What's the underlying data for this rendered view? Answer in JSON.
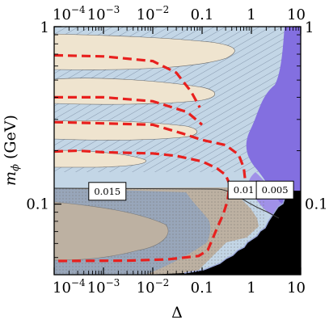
{
  "chart_data": {
    "type": "area",
    "title": "",
    "xlabel": "Δ",
    "ylabel": "m_ϕ (GeV)",
    "ylabel_main": "m",
    "ylabel_sub": "ϕ",
    "ylabel_unit": " (GeV)",
    "x_scale": "log",
    "y_scale": "log",
    "xlim": [
      0.0001,
      10
    ],
    "ylim": [
      0.04,
      1
    ],
    "x_ticks": [
      {
        "value": 0.0001,
        "base": "10",
        "exp": "−4"
      },
      {
        "value": 0.001,
        "base": "10",
        "exp": "−3"
      },
      {
        "value": 0.01,
        "base": "10",
        "exp": "−2"
      },
      {
        "value": 0.1,
        "label": "0.1"
      },
      {
        "value": 1,
        "label": "1"
      },
      {
        "value": 10,
        "label": "10"
      }
    ],
    "y_ticks": [
      {
        "value": 1,
        "label": "1"
      },
      {
        "value": 0.1,
        "label": "0.1"
      }
    ],
    "contour_labels": [
      {
        "label": "0.015",
        "x": 0.0012,
        "y": 0.118
      },
      {
        "label": "0.01",
        "x": 0.7,
        "y": 0.12
      },
      {
        "label": "0.005",
        "x": 3.0,
        "y": 0.12
      }
    ],
    "colors": {
      "background": "#c3d6e6",
      "tan": "#efe4cf",
      "gray_tan": "#bdb1a2",
      "slate": "#98a6ba",
      "purple": "#836fe0",
      "purple_light": "#a091e8",
      "excluded": "#000000",
      "dashed": "#e8201e",
      "hatch": "#7d8ea4",
      "boundary": "#333333"
    },
    "dashed_curves": [
      {
        "points": [
          [
            0.0001,
            0.69
          ],
          [
            0.001,
            0.68
          ],
          [
            0.01,
            0.64
          ],
          [
            0.03,
            0.55
          ],
          [
            0.06,
            0.43
          ],
          [
            0.09,
            0.35
          ]
        ]
      },
      {
        "points": [
          [
            0.0001,
            0.4
          ],
          [
            0.001,
            0.4
          ],
          [
            0.01,
            0.38
          ],
          [
            0.05,
            0.33
          ],
          [
            0.1,
            0.28
          ]
        ]
      },
      {
        "points": [
          [
            0.0001,
            0.29
          ],
          [
            0.001,
            0.285
          ],
          [
            0.01,
            0.28
          ],
          [
            0.04,
            0.25
          ],
          [
            0.1,
            0.23
          ],
          [
            0.3,
            0.215
          ],
          [
            0.55,
            0.19
          ],
          [
            0.7,
            0.16
          ],
          [
            0.75,
            0.135
          ],
          [
            0.78,
            0.125
          ]
        ]
      },
      {
        "points": [
          [
            0.0001,
            0.198
          ],
          [
            0.0003,
            0.2
          ],
          [
            0.001,
            0.196
          ],
          [
            0.01,
            0.193
          ],
          [
            0.03,
            0.187
          ],
          [
            0.1,
            0.174
          ],
          [
            0.2,
            0.159
          ],
          [
            0.3,
            0.146
          ],
          [
            0.36,
            0.13
          ],
          [
            0.33,
            0.105
          ],
          [
            0.27,
            0.088
          ],
          [
            0.2,
            0.073
          ],
          [
            0.16,
            0.063
          ],
          [
            0.13,
            0.055
          ],
          [
            0.085,
            0.051
          ],
          [
            0.02,
            0.0488
          ],
          [
            0.003,
            0.048
          ],
          [
            0.0001,
            0.0478
          ]
        ]
      }
    ]
  }
}
